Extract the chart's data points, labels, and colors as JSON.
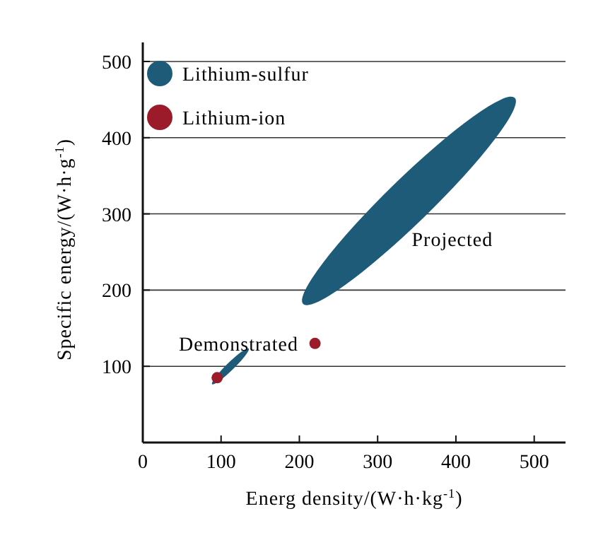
{
  "chart_data": {
    "type": "scatter",
    "xlabel": "Energ density/(W·h·kg$^{-1}$)",
    "ylabel": "Specific energy/(W·h·g$^{-1}$)",
    "xlim": [
      0,
      540
    ],
    "ylim": [
      0,
      525
    ],
    "xticks": [
      0,
      100,
      200,
      300,
      400,
      500
    ],
    "yticks": [
      100,
      200,
      300,
      400,
      500
    ],
    "grid": "y",
    "legend": "top left",
    "marker": "circle",
    "series": [
      {
        "name": "Lithium-sulfur",
        "type": "bubble",
        "color": "#1e5b78",
        "x": [
          112,
          340
        ],
        "values": [
          100,
          317
        ],
        "sizes": [
          0.03,
          1
        ]
      },
      {
        "name": "Lithium-ion",
        "color": "#9b1b2a",
        "x": [
          95,
          220
        ],
        "values": [
          85,
          130
        ]
      }
    ],
    "annotations": [
      {
        "text": "Projected",
        "x": 340,
        "y": 317
      },
      {
        "text": "Demonstrated",
        "x": 112,
        "y": 100
      }
    ]
  }
}
